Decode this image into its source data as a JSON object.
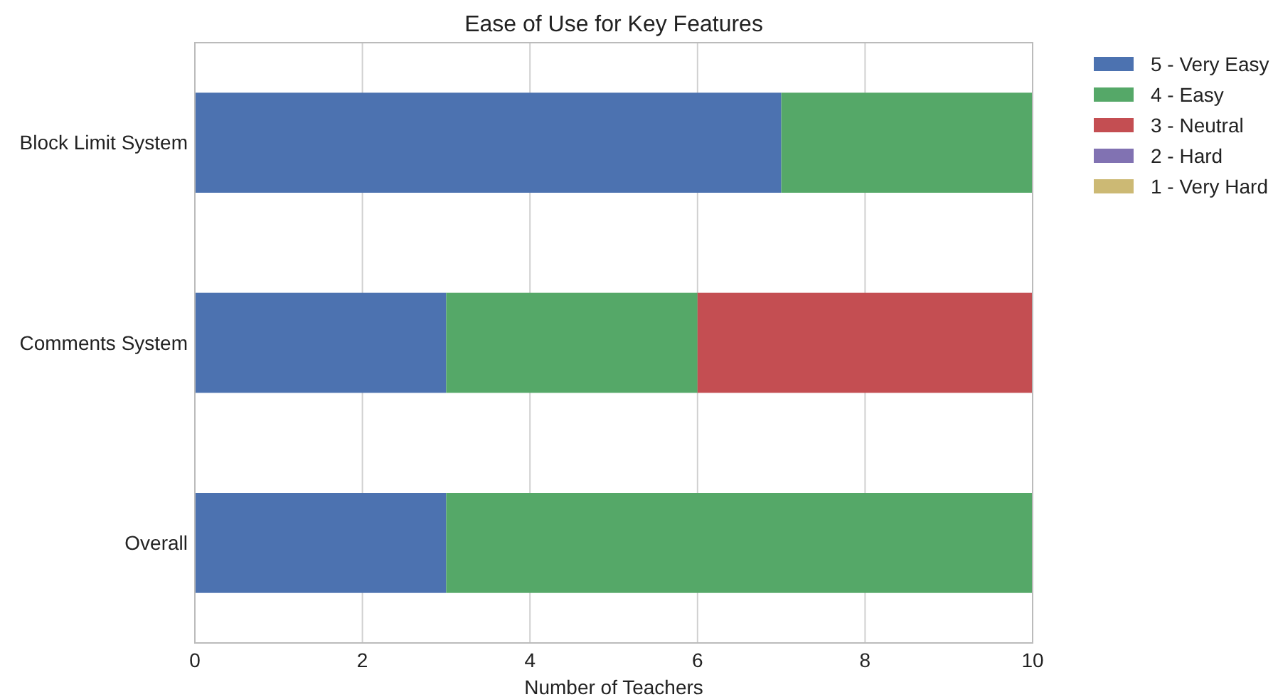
{
  "chart_data": {
    "type": "bar",
    "orientation": "horizontal",
    "stacked": true,
    "title": "Ease of Use for Key Features",
    "xlabel": "Number of Teachers",
    "categories": [
      "Block Limit System",
      "Comments System",
      "Overall"
    ],
    "series": [
      {
        "name": "5 - Very Easy",
        "color": "#4c72b0",
        "values": [
          7,
          3,
          3
        ]
      },
      {
        "name": "4 - Easy",
        "color": "#55a868",
        "values": [
          3,
          3,
          7
        ]
      },
      {
        "name": "3 - Neutral",
        "color": "#c44e52",
        "values": [
          0,
          4,
          0
        ]
      },
      {
        "name": "2 - Hard",
        "color": "#8172b2",
        "values": [
          0,
          0,
          0
        ]
      },
      {
        "name": "1 - Very Hard",
        "color": "#ccb974",
        "values": [
          0,
          0,
          0
        ]
      }
    ],
    "xlim": [
      0,
      10
    ],
    "xticks": [
      0,
      2,
      4,
      6,
      8,
      10
    ],
    "grid": "x",
    "legend": "top right"
  }
}
